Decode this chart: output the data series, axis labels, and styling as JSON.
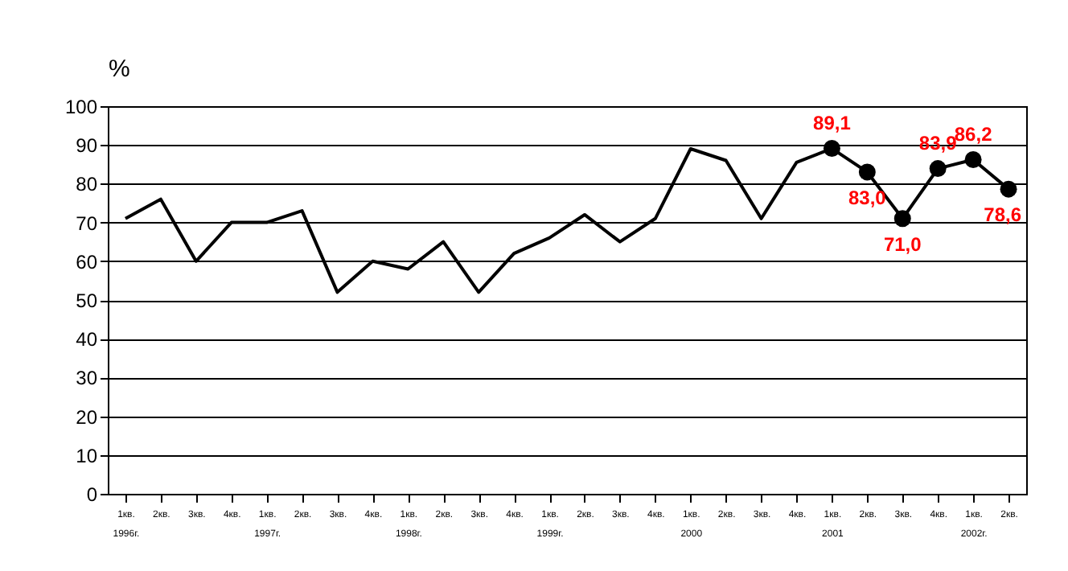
{
  "chart_data": {
    "type": "line",
    "ylabel": "%",
    "categories": [
      "1кв.\n1996г.",
      "2кв.",
      "3кв.",
      "4кв.",
      "1кв.\n1997г.",
      "2кв.",
      "3кв.",
      "4кв.",
      "1кв.\n1998г.",
      "2кв.",
      "3кв.",
      "4кв.",
      "1кв.\n1999г.",
      "2кв.",
      "3кв.",
      "4кв.",
      "1кв.\n2000",
      "2кв.",
      "3кв.",
      "4кв.",
      "1кв.\n2001",
      "2кв.",
      "3кв.",
      "4кв.",
      "1кв.\n2002г.",
      "2кв."
    ],
    "series": [
      {
        "type": "line",
        "color": "#000000",
        "values": [
          71,
          76,
          60,
          70,
          70,
          73,
          52,
          60,
          58,
          65,
          52,
          62,
          66,
          72,
          65,
          71,
          89,
          86,
          71,
          85.5,
          89.1,
          83.0,
          71.0,
          83.9,
          86.2,
          78.6
        ]
      },
      {
        "type": "scatter",
        "color": "#000000",
        "marker": "circle",
        "values": [
          null,
          null,
          null,
          null,
          null,
          null,
          null,
          null,
          null,
          null,
          null,
          null,
          null,
          null,
          null,
          null,
          null,
          null,
          null,
          null,
          89.1,
          83.0,
          71.0,
          83.9,
          86.2,
          78.6
        ],
        "value_labels": [
          null,
          null,
          null,
          null,
          null,
          null,
          null,
          null,
          null,
          null,
          null,
          null,
          null,
          null,
          null,
          null,
          null,
          null,
          null,
          null,
          "89,1",
          "83,0",
          "71,0",
          "83,9",
          "86,2",
          "78,6"
        ]
      }
    ],
    "ylim": [
      0,
      100
    ],
    "yticks": [
      0,
      10,
      20,
      30,
      40,
      50,
      60,
      70,
      80,
      90,
      100
    ],
    "grid": "y"
  }
}
